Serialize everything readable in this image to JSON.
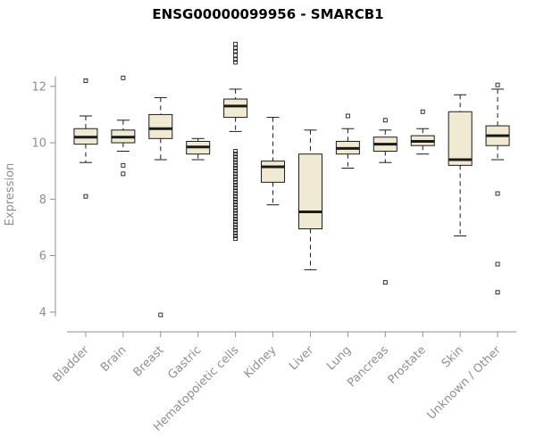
{
  "chart_data": {
    "type": "boxplot",
    "title": "ENSG00000099956 - SMARCB1",
    "ylabel": "Expression",
    "ylim": [
      3.3,
      13.7
    ],
    "yticks": [
      4,
      6,
      8,
      10,
      12
    ],
    "grid": false,
    "legend": false,
    "box_fill": "#f1ead2",
    "box_stroke": "#1a1a1a",
    "axis_color": "#8f8f8f",
    "categories": [
      "Bladder",
      "Brain",
      "Breast",
      "Gastric",
      "Hematopoietic cells",
      "Kidney",
      "Liver",
      "Lung",
      "Pancreas",
      "Prostate",
      "Skin",
      "Unknown / Other"
    ],
    "boxes": [
      {
        "category": "Bladder",
        "low": 9.3,
        "q1": 9.95,
        "median": 10.2,
        "q3": 10.5,
        "high": 10.95,
        "outliers": [
          12.2,
          8.1
        ]
      },
      {
        "category": "Brain",
        "low": 9.7,
        "q1": 10.0,
        "median": 10.2,
        "q3": 10.45,
        "high": 10.8,
        "outliers": [
          12.3,
          9.2,
          8.9
        ]
      },
      {
        "category": "Breast",
        "low": 9.4,
        "q1": 10.15,
        "median": 10.5,
        "q3": 11.0,
        "high": 11.6,
        "outliers": [
          3.9
        ]
      },
      {
        "category": "Gastric",
        "low": 9.4,
        "q1": 9.6,
        "median": 9.85,
        "q3": 10.05,
        "high": 10.15,
        "outliers": []
      },
      {
        "category": "Hematopoietic cells",
        "low": 10.4,
        "q1": 10.9,
        "median": 11.3,
        "q3": 11.55,
        "high": 11.9,
        "outliers": [
          13.5,
          13.35,
          13.25,
          13.1,
          12.95,
          12.85,
          9.7,
          9.6,
          9.5,
          9.4,
          9.3,
          9.2,
          9.1,
          9.0,
          8.9,
          8.8,
          8.7,
          8.6,
          8.5,
          8.4,
          8.3,
          8.2,
          8.1,
          8.0,
          7.9,
          7.8,
          7.7,
          7.6,
          7.5,
          7.4,
          7.3,
          7.2,
          7.1,
          7.0,
          6.9,
          6.8,
          6.7,
          6.6
        ]
      },
      {
        "category": "Kidney",
        "low": 7.8,
        "q1": 8.6,
        "median": 9.15,
        "q3": 9.35,
        "high": 10.9,
        "outliers": []
      },
      {
        "category": "Liver",
        "low": 5.5,
        "q1": 6.95,
        "median": 7.55,
        "q3": 9.6,
        "high": 10.45,
        "outliers": []
      },
      {
        "category": "Lung",
        "low": 9.1,
        "q1": 9.6,
        "median": 9.8,
        "q3": 10.05,
        "high": 10.5,
        "outliers": [
          10.95
        ]
      },
      {
        "category": "Pancreas",
        "low": 9.3,
        "q1": 9.7,
        "median": 9.95,
        "q3": 10.2,
        "high": 10.45,
        "outliers": [
          10.8,
          5.05
        ]
      },
      {
        "category": "Prostate",
        "low": 9.6,
        "q1": 9.9,
        "median": 10.05,
        "q3": 10.25,
        "high": 10.5,
        "outliers": [
          11.1
        ]
      },
      {
        "category": "Skin",
        "low": 6.7,
        "q1": 9.2,
        "median": 9.4,
        "q3": 11.1,
        "high": 11.7,
        "outliers": []
      },
      {
        "category": "Unknown / Other",
        "low": 9.4,
        "q1": 9.9,
        "median": 10.25,
        "q3": 10.6,
        "high": 11.9,
        "outliers": [
          12.05,
          8.2,
          5.7,
          4.7
        ]
      }
    ]
  }
}
